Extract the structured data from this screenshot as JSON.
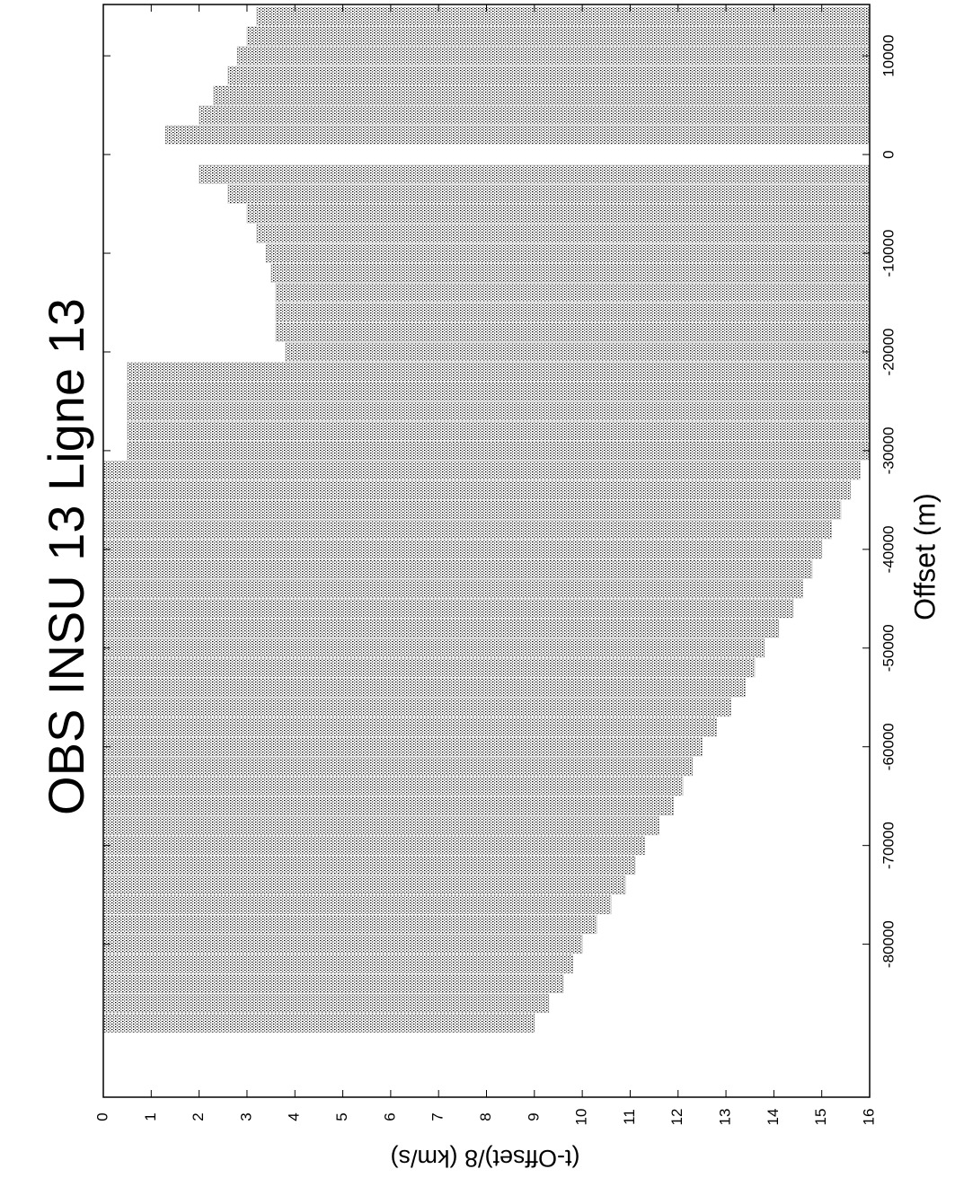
{
  "chart_data": {
    "type": "record-section",
    "title": "OBS INSU 13 Ligne 13",
    "x_label": "Offset (m)",
    "y_label": "(t-Offset)/8 (km/s)",
    "x": [
      -88000,
      -86000,
      -84000,
      -82000,
      -80000,
      -78000,
      -76000,
      -74000,
      -72000,
      -70000,
      -68000,
      -66000,
      -64000,
      -62000,
      -60000,
      -58000,
      -56000,
      -54000,
      -52000,
      -50000,
      -48000,
      -46000,
      -44000,
      -42000,
      -40000,
      -38000,
      -36000,
      -34000,
      -32000,
      -30000,
      -28000,
      -26000,
      -24000,
      -22000,
      -20000,
      -18000,
      -16000,
      -14000,
      -12000,
      -10000,
      -8000,
      -6000,
      -4000,
      -2000,
      2000,
      4000,
      6000,
      8000,
      10000,
      12000,
      14000
    ],
    "start": [
      0,
      0,
      0,
      0,
      0,
      0,
      0,
      0,
      0,
      0,
      0,
      0,
      0,
      0,
      0,
      0,
      0,
      0,
      0,
      0,
      0,
      0,
      0,
      0,
      0,
      0,
      0,
      0,
      0,
      0.5,
      0.5,
      0.5,
      0.5,
      0.5,
      3.8,
      3.6,
      3.6,
      3.6,
      3.5,
      3.4,
      3.2,
      3.0,
      2.6,
      2.0,
      1.3,
      2.0,
      2.3,
      2.6,
      2.8,
      3.0,
      3.2
    ],
    "end": [
      9.0,
      9.3,
      9.6,
      9.8,
      10.0,
      10.3,
      10.6,
      10.9,
      11.1,
      11.3,
      11.6,
      11.9,
      12.1,
      12.3,
      12.5,
      12.8,
      13.1,
      13.4,
      13.6,
      13.8,
      14.1,
      14.4,
      14.6,
      14.8,
      15.0,
      15.2,
      15.4,
      15.6,
      15.8,
      16,
      16,
      16,
      16,
      16,
      16,
      16,
      16,
      16,
      16,
      16,
      16,
      16,
      16,
      16,
      16,
      16,
      16,
      16,
      16,
      16,
      16
    ],
    "xlim": [
      -95500,
      15200
    ],
    "xticks": [
      10000,
      0,
      -10000,
      -20000,
      -30000,
      -40000,
      -50000,
      -60000,
      -70000,
      -80000
    ],
    "ylim": [
      0,
      16
    ],
    "yticks": [
      0,
      1,
      2,
      3,
      4,
      5,
      6,
      7,
      8,
      9,
      10,
      11,
      12,
      13,
      14,
      15,
      16
    ],
    "color": "#000000"
  }
}
